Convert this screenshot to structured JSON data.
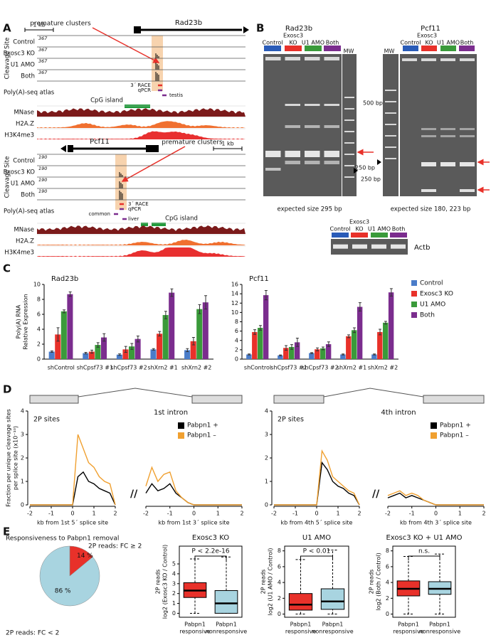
{
  "panel_labels": [
    "A",
    "B",
    "C",
    "D",
    "E"
  ],
  "panel_a": {
    "rad23b": {
      "scale": "1 kb",
      "gene": "Rad23b",
      "annotation": "premature clusters",
      "axis_label": "Cleavage Site",
      "tracks": [
        "Control",
        "Exosc3 KO",
        "U1 AMO",
        "Both"
      ],
      "track_max": [
        367,
        367,
        367,
        367
      ],
      "features": [
        "3´ RACE",
        "qPCR",
        "testis"
      ],
      "atlas": "Poly(A)-seq atlas",
      "cpg": "CpG island",
      "chromatin": [
        "MNase",
        "H2A.Z",
        "H3K4me3"
      ]
    },
    "pcf11": {
      "scale": "1 kb",
      "gene": "Pcf11",
      "annotation": "premature clusters",
      "axis_label": "Cleavage Site",
      "tracks": [
        "Control",
        "Exosc3 KO",
        "U1 AMO",
        "Both"
      ],
      "track_max": [
        190,
        190,
        190,
        190
      ],
      "features": [
        "3´ RACE",
        "qPCR",
        "common",
        "liver"
      ],
      "atlas": "Poly(A)-seq atlas",
      "cpg": "CpG island",
      "chromatin": [
        "MNase",
        "H2A.Z",
        "H3K4me3"
      ]
    }
  },
  "panel_b": {
    "rad23b_gel": {
      "title": "Rad23b",
      "header": "Exosc3",
      "lanes": [
        "Control",
        "KO",
        "U1 AMO",
        "Both",
        "MW"
      ],
      "markers": [
        "500 bp",
        "250 bp"
      ],
      "caption": "expected size 295 bp"
    },
    "pcf11_gel": {
      "title": "Pcf11",
      "header": "Exosc3",
      "lanes": [
        "MW",
        "Control",
        "KO",
        "U1 AMO",
        "Both"
      ],
      "markers": [
        "250 bp"
      ],
      "caption": "expected size 180, 223 bp"
    },
    "actb_gel": {
      "header": "Exosc3",
      "lanes": [
        "Control",
        "KO",
        "U1 AMO",
        "Both"
      ],
      "label": "Actb"
    }
  },
  "chart_data": [
    {
      "type": "bar",
      "title": "Rad23b",
      "ylabel": [
        "Poly(A) RNA",
        "Relative Expression"
      ],
      "categories": [
        "shControl",
        "shCpsf73 #1",
        "shCpsf73 #2",
        "shXrn2 #1",
        "shXrn2 #2"
      ],
      "series": [
        {
          "color": "#4a7cc9",
          "values": [
            1.0,
            0.8,
            0.6,
            1.3,
            1.2
          ],
          "errors": [
            0.1,
            0.1,
            0.1,
            0.1,
            0.2
          ]
        },
        {
          "color": "#e8312a",
          "values": [
            3.3,
            1.0,
            1.3,
            3.4,
            2.4
          ],
          "errors": [
            0.9,
            0.2,
            0.4,
            0.3,
            0.5
          ]
        },
        {
          "color": "#3a9a3a",
          "values": [
            6.4,
            1.9,
            1.7,
            5.9,
            6.7
          ],
          "errors": [
            0.2,
            0.3,
            0.4,
            0.5,
            0.6
          ]
        },
        {
          "color": "#7b2d8e",
          "values": [
            8.7,
            2.9,
            2.7,
            8.9,
            7.6
          ],
          "errors": [
            0.3,
            0.5,
            0.4,
            0.5,
            0.9
          ]
        }
      ],
      "ylim": [
        0,
        10
      ],
      "yticks": [
        0,
        2,
        4,
        6,
        8,
        10
      ]
    },
    {
      "type": "bar",
      "title": "Pcf11",
      "categories": [
        "shControl",
        "shCpsf73 #1",
        "shCpsf73 #2",
        "shXrn2 #1",
        "shXrn2 #2"
      ],
      "series": [
        {
          "name": "Control",
          "color": "#4a7cc9",
          "values": [
            1.0,
            0.8,
            1.3,
            1.0,
            1.0
          ],
          "errors": [
            0.1,
            0.1,
            0.1,
            0.1,
            0.1
          ]
        },
        {
          "name": "Exosc3 KO",
          "color": "#e8312a",
          "values": [
            5.8,
            2.4,
            2.1,
            4.9,
            5.8
          ],
          "errors": [
            0.5,
            0.5,
            0.3,
            0.3,
            0.6
          ]
        },
        {
          "name": "U1 AMO",
          "color": "#3a9a3a",
          "values": [
            6.7,
            2.6,
            2.3,
            6.2,
            7.8
          ],
          "errors": [
            0.5,
            0.5,
            0.3,
            0.5,
            0.3
          ]
        },
        {
          "name": "Both",
          "color": "#7b2d8e",
          "values": [
            13.7,
            3.6,
            3.2,
            11.2,
            14.3
          ],
          "errors": [
            1.0,
            0.9,
            0.5,
            0.9,
            0.8
          ]
        }
      ],
      "ylim": [
        0,
        16
      ],
      "yticks": [
        0,
        2,
        4,
        6,
        8,
        10,
        12,
        14,
        16
      ]
    },
    {
      "type": "line",
      "title": "1st intron",
      "annotation": "2P sites",
      "ylabel": [
        "Fraction per unique cleavage sites",
        "per splice site (x10⁻¹⁰)"
      ],
      "xlabel": "kb from 1st 5´ splice site",
      "x": [
        -2,
        -1.75,
        -1.5,
        -1.25,
        -1,
        -0.75,
        -0.5,
        -0.25,
        0,
        0.25,
        0.5,
        0.75,
        1,
        1.25,
        1.5,
        1.75,
        2
      ],
      "series": [
        {
          "name": "Pabpn1 +",
          "color": "#000000",
          "values": [
            0,
            0,
            0,
            0,
            0,
            0,
            0,
            0,
            0,
            1.2,
            1.4,
            1.0,
            0.9,
            0.7,
            0.6,
            0.5,
            0
          ]
        },
        {
          "name": "Pabpn1 –",
          "color": "#f0a030",
          "values": [
            0,
            0,
            0,
            0,
            0,
            0,
            0,
            0,
            0,
            3.0,
            2.4,
            1.8,
            1.6,
            1.2,
            1.0,
            0.9,
            0
          ]
        }
      ],
      "xlim": [
        -2,
        2
      ],
      "xticks": [
        -2,
        -1,
        0,
        1,
        2
      ],
      "ylim": [
        0,
        4
      ],
      "yticks": [
        0,
        1,
        2,
        3,
        4
      ]
    },
    {
      "type": "line",
      "xlabel": "kb from 1st 3´ splice site",
      "x": [
        -2,
        -1.75,
        -1.5,
        -1.25,
        -1,
        -0.75,
        -0.5,
        -0.25,
        0,
        0.25,
        0.5,
        0.75,
        1,
        1.25,
        1.5,
        1.75,
        2
      ],
      "series": [
        {
          "color": "#000000",
          "values": [
            0.5,
            0.9,
            0.6,
            0.7,
            0.9,
            0.5,
            0.3,
            0.1,
            0,
            0,
            0,
            0,
            0,
            0,
            0,
            0,
            0
          ]
        },
        {
          "color": "#f0a030",
          "values": [
            0.8,
            1.6,
            1.0,
            1.3,
            1.4,
            0.6,
            0.3,
            0.1,
            0,
            0,
            0,
            0,
            0,
            0,
            0,
            0,
            0
          ]
        }
      ],
      "xlim": [
        -2,
        2
      ],
      "xticks": [
        -2,
        -1,
        0,
        1,
        2
      ],
      "ylim": [
        0,
        4
      ]
    },
    {
      "type": "line",
      "title": "4th intron",
      "annotation": "2P sites",
      "xlabel": "kb from 4th 5´ splice site",
      "x": [
        -2,
        -1.75,
        -1.5,
        -1.25,
        -1,
        -0.75,
        -0.5,
        -0.25,
        0,
        0.25,
        0.5,
        0.75,
        1,
        1.25,
        1.5,
        1.75,
        2
      ],
      "series": [
        {
          "name": "Pabpn1 +",
          "color": "#000000",
          "values": [
            0,
            0,
            0,
            0,
            0,
            0,
            0,
            0,
            0,
            1.8,
            1.5,
            1.0,
            0.8,
            0.7,
            0.5,
            0.4,
            0
          ]
        },
        {
          "name": "Pabpn1 –",
          "color": "#f0a030",
          "values": [
            0,
            0,
            0,
            0,
            0,
            0,
            0,
            0,
            0,
            2.3,
            1.9,
            1.2,
            1.0,
            0.8,
            0.6,
            0.5,
            0
          ]
        }
      ],
      "xlim": [
        -2,
        2
      ],
      "xticks": [
        -2,
        -1,
        0,
        1,
        2
      ],
      "ylim": [
        0,
        4
      ],
      "yticks": [
        0,
        1,
        2,
        3,
        4
      ]
    },
    {
      "type": "line",
      "xlabel": "kb from 4th 3´ splice site",
      "x": [
        -2,
        -1.75,
        -1.5,
        -1.25,
        -1,
        -0.75,
        -0.5,
        -0.25,
        0,
        0.25,
        0.5,
        0.75,
        1,
        1.25,
        1.5,
        1.75,
        2
      ],
      "series": [
        {
          "color": "#000000",
          "values": [
            0.3,
            0.4,
            0.5,
            0.3,
            0.4,
            0.3,
            0.2,
            0.1,
            0,
            0,
            0,
            0,
            0,
            0,
            0,
            0,
            0
          ]
        },
        {
          "color": "#f0a030",
          "values": [
            0.4,
            0.5,
            0.6,
            0.4,
            0.5,
            0.4,
            0.2,
            0.1,
            0,
            0,
            0,
            0,
            0,
            0,
            0,
            0,
            0
          ]
        }
      ],
      "xlim": [
        -2,
        2
      ],
      "xticks": [
        -2,
        -1,
        0,
        1,
        2
      ],
      "ylim": [
        0,
        4
      ]
    },
    {
      "type": "pie",
      "title": "Responsiveness to Pabpn1 removal",
      "categories": [
        "2P reads: FC ≥ 2",
        "2P reads: FC < 2"
      ],
      "values": [
        14,
        86
      ],
      "value_labels": [
        "14 %",
        "86 %"
      ],
      "colors": [
        "#e8312a",
        "#a8d4e0"
      ]
    },
    {
      "type": "box",
      "title": "Exosc3 KO",
      "ylabel": [
        "2P reads",
        "log2 (Exosc3 KO / Control)"
      ],
      "annotation": "P < 2.2e-16",
      "categories": [
        [
          "Pabpn1",
          "responsive"
        ],
        [
          "Pabpn1",
          "nonresponsive"
        ]
      ],
      "colors": [
        "#e8312a",
        "#a8d4e0"
      ],
      "low": [
        0,
        0
      ],
      "q1": [
        1.6,
        0
      ],
      "median": [
        2.3,
        1.0
      ],
      "q3": [
        3.1,
        2.3
      ],
      "high": [
        5.5,
        5.7
      ],
      "ylim": [
        -0.4,
        6.8
      ],
      "yticks": [
        0,
        1,
        2,
        3,
        4,
        5
      ]
    },
    {
      "type": "box",
      "title": "U1 AMO",
      "ylabel": [
        "2P reads",
        "log2 (U1 AMO / Control)"
      ],
      "annotation": "P < 0.01",
      "categories": [
        [
          "Pabpn1",
          "responsive"
        ],
        [
          "Pabpn1",
          "nonresponsive"
        ]
      ],
      "colors": [
        "#e8312a",
        "#a8d4e0"
      ],
      "low": [
        0,
        0
      ],
      "q1": [
        0.5,
        0.6
      ],
      "median": [
        1.2,
        1.6
      ],
      "q3": [
        2.6,
        3.2
      ],
      "high": [
        6.9,
        8.1
      ],
      "ylim": [
        -0.4,
        8.6
      ],
      "yticks": [
        0,
        2,
        4,
        6,
        8
      ]
    },
    {
      "type": "box",
      "title": "Exosc3 KO + U1 AMO",
      "ylabel": [
        "2P reads",
        "log2 (Both / Control)"
      ],
      "annotation": "n.s.",
      "categories": [
        [
          "Pabpn1",
          "responsive"
        ],
        [
          "Pabpn1",
          "nonresponsive"
        ]
      ],
      "colors": [
        "#e8312a",
        "#a8d4e0"
      ],
      "low": [
        0,
        0
      ],
      "q1": [
        2.3,
        2.5
      ],
      "median": [
        3.2,
        3.2
      ],
      "q3": [
        4.2,
        4.1
      ],
      "high": [
        7.3,
        7.6
      ],
      "ylim": [
        -0.4,
        8.6
      ],
      "yticks": [
        0,
        2,
        4,
        6,
        8
      ]
    }
  ]
}
